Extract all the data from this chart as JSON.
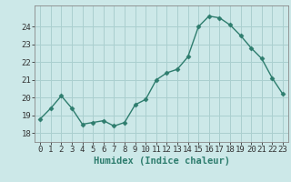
{
  "x": [
    0,
    1,
    2,
    3,
    4,
    5,
    6,
    7,
    8,
    9,
    10,
    11,
    12,
    13,
    14,
    15,
    16,
    17,
    18,
    19,
    20,
    21,
    22,
    23
  ],
  "y": [
    18.8,
    19.4,
    20.1,
    19.4,
    18.5,
    18.6,
    18.7,
    18.4,
    18.6,
    19.6,
    19.9,
    21.0,
    21.4,
    21.6,
    22.3,
    24.0,
    24.6,
    24.5,
    24.1,
    23.5,
    22.8,
    22.2,
    21.1,
    20.2
  ],
  "xlabel": "Humidex (Indice chaleur)",
  "ylim": [
    17.5,
    25.2
  ],
  "yticks": [
    18,
    19,
    20,
    21,
    22,
    23,
    24
  ],
  "xlim": [
    -0.5,
    23.5
  ],
  "line_color": "#2e7d6e",
  "marker": "D",
  "marker_size": 2.5,
  "bg_color": "#cce8e8",
  "grid_color": "#aacfcf",
  "xlabel_fontsize": 7.5,
  "tick_fontsize": 6.5,
  "linewidth": 1.0
}
